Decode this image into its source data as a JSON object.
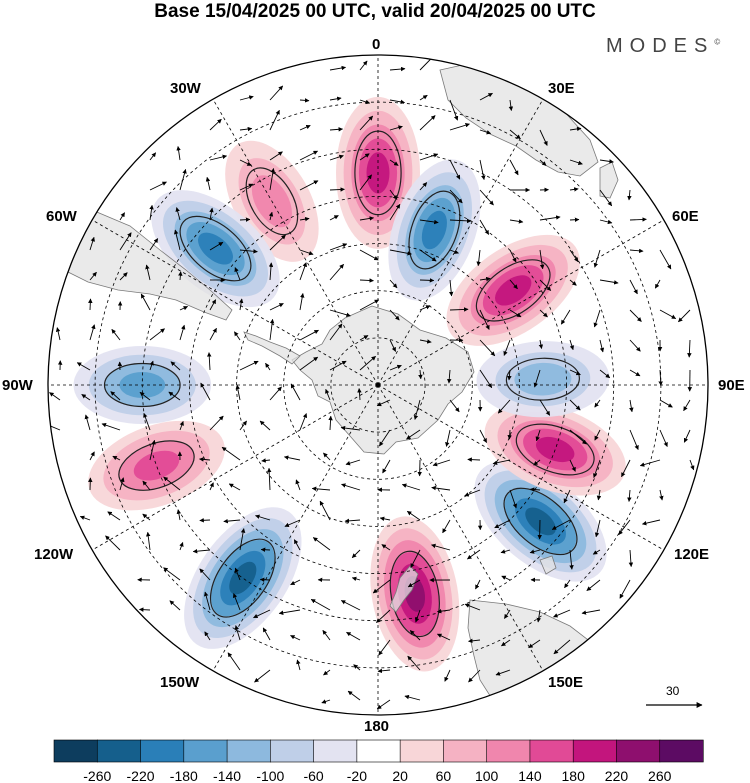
{
  "title": "Base 15/04/2025 00 UTC, valid 20/04/2025 00 UTC",
  "brand": "MODES",
  "brand_mark": "©",
  "longitude_labels": {
    "top": "0",
    "bottom": "180",
    "left": "90W",
    "right": "90E",
    "nw1": "30W",
    "nw2": "60W",
    "ne1": "30E",
    "ne2": "60E",
    "sw1": "120W",
    "sw2": "150W",
    "se1": "120E",
    "se2": "150E"
  },
  "reference_vector": {
    "label": "30"
  },
  "colorbar": {
    "labels": [
      "-260",
      "-220",
      "-180",
      "-140",
      "-100",
      "-60",
      "-20",
      "20",
      "60",
      "100",
      "140",
      "180",
      "220",
      "260"
    ],
    "colors": [
      "#0d3d5e",
      "#155f8c",
      "#2a7fb8",
      "#5a9fce",
      "#8db9de",
      "#bfcfe8",
      "#e3e3f1",
      "#ffffff",
      "#f8d6d8",
      "#f5b2c3",
      "#f086ad",
      "#e14a96",
      "#c3157d",
      "#8e0f6e",
      "#5c0b63"
    ]
  },
  "colors": {
    "ocean": "#ffffff",
    "land": "#e6e6e6",
    "coast": "#888888",
    "grid": "#000000"
  },
  "map_data": {
    "projection": "south-polar-stereographic",
    "anomaly_features": [
      {
        "lon": 0,
        "lat": -45,
        "value": 200,
        "name": "pos-0"
      },
      {
        "lon": -30,
        "lat": -45,
        "value": 120,
        "name": "pos-30w"
      },
      {
        "lon": -50,
        "lat": -45,
        "value": -200,
        "name": "neg-50w"
      },
      {
        "lon": -90,
        "lat": -40,
        "value": -140,
        "name": "neg-90w"
      },
      {
        "lon": -110,
        "lat": -40,
        "value": 160,
        "name": "pos-110w"
      },
      {
        "lon": -145,
        "lat": -40,
        "value": -240,
        "name": "neg-145w"
      },
      {
        "lon": 170,
        "lat": -45,
        "value": 220,
        "name": "pos-170e"
      },
      {
        "lon": 130,
        "lat": -45,
        "value": -220,
        "name": "neg-130e"
      },
      {
        "lon": 110,
        "lat": -50,
        "value": 180,
        "name": "pos-110e"
      },
      {
        "lon": 88,
        "lat": -55,
        "value": -120,
        "name": "neg-88e"
      },
      {
        "lon": 55,
        "lat": -55,
        "value": 200,
        "name": "pos-55e"
      },
      {
        "lon": 20,
        "lat": -55,
        "value": -180,
        "name": "neg-20e"
      }
    ]
  }
}
